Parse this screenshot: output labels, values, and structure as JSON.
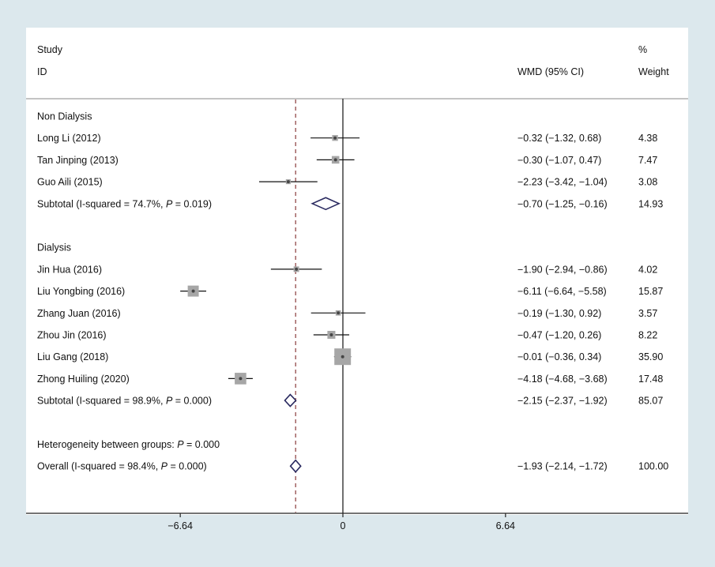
{
  "header": {
    "study_line1": "Study",
    "study_line2": "ID",
    "wmd_ci_label": "WMD (95% CI)",
    "percent_label": "%",
    "weight_label": "Weight"
  },
  "axis": {
    "ticks": [
      -6.64,
      0,
      6.64
    ],
    "tick_labels": [
      "−6.64",
      "0",
      "6.64"
    ]
  },
  "colors": {
    "background": "#dce8ed",
    "plot_background": "#ffffff",
    "diamond_outline": "#2a2a60",
    "dashed_line": "#8a3a3a",
    "square_fill": "#a6a6a6",
    "point_fill": "#454545",
    "ci_line": "#111111",
    "axis_line": "#222222",
    "separator_line": "#8a8a8a",
    "text": "#111111"
  },
  "chart_data": {
    "type": "forest",
    "effect_label": "WMD",
    "groups": [
      {
        "name": "Non Dialysis",
        "studies": [
          {
            "id": "Long Li (2012)",
            "est": -0.32,
            "lo": -1.32,
            "hi": 0.68,
            "ci_text": "−0.32 (−1.32, 0.68)",
            "weight": 4.38,
            "weight_text": "4.38"
          },
          {
            "id": "Tan Jinping (2013)",
            "est": -0.3,
            "lo": -1.07,
            "hi": 0.47,
            "ci_text": "−0.30 (−1.07, 0.47)",
            "weight": 7.47,
            "weight_text": "7.47"
          },
          {
            "id": "Guo Aili (2015)",
            "est": -2.23,
            "lo": -3.42,
            "hi": -1.04,
            "ci_text": "−2.23 (−3.42, −1.04)",
            "weight": 3.08,
            "weight_text": "3.08"
          }
        ],
        "subtotal": {
          "label": "Subtotal  (I-squared = 74.7%, P = 0.019)",
          "est": -0.7,
          "lo": -1.25,
          "hi": -0.16,
          "ci_text": "−0.70 (−1.25, −0.16)",
          "weight_text": "14.93"
        }
      },
      {
        "name": "Dialysis",
        "studies": [
          {
            "id": "Jin Hua (2016)",
            "est": -1.9,
            "lo": -2.94,
            "hi": -0.86,
            "ci_text": "−1.90 (−2.94, −0.86)",
            "weight": 4.02,
            "weight_text": "4.02"
          },
          {
            "id": "Liu Yongbing (2016)",
            "est": -6.11,
            "lo": -6.64,
            "hi": -5.58,
            "ci_text": "−6.11 (−6.64, −5.58)",
            "weight": 15.87,
            "weight_text": "15.87"
          },
          {
            "id": "Zhang Juan (2016)",
            "est": -0.19,
            "lo": -1.3,
            "hi": 0.92,
            "ci_text": "−0.19 (−1.30, 0.92)",
            "weight": 3.57,
            "weight_text": "3.57"
          },
          {
            "id": "Zhou Jin (2016)",
            "est": -0.47,
            "lo": -1.2,
            "hi": 0.26,
            "ci_text": "−0.47 (−1.20, 0.26)",
            "weight": 8.22,
            "weight_text": "8.22"
          },
          {
            "id": "Liu Gang (2018)",
            "est": -0.01,
            "lo": -0.36,
            "hi": 0.34,
            "ci_text": "−0.01 (−0.36, 0.34)",
            "weight": 35.9,
            "weight_text": "35.90"
          },
          {
            "id": "Zhong Huiling (2020)",
            "est": -4.18,
            "lo": -4.68,
            "hi": -3.68,
            "ci_text": "−4.18 (−4.68, −3.68)",
            "weight": 17.48,
            "weight_text": "17.48"
          }
        ],
        "subtotal": {
          "label": "Subtotal  (I-squared = 98.9%, P = 0.000)",
          "est": -2.15,
          "lo": -2.37,
          "hi": -1.92,
          "ci_text": "−2.15 (−2.37, −1.92)",
          "weight_text": "85.07"
        }
      }
    ],
    "heterogeneity_note": "Heterogeneity between groups: P = 0.000",
    "overall": {
      "label": "Overall  (I-squared = 98.4%, P = 0.000)",
      "est": -1.93,
      "lo": -2.14,
      "hi": -1.72,
      "ci_text": "−1.93 (−2.14, −1.72)",
      "weight_text": "100.00"
    }
  }
}
